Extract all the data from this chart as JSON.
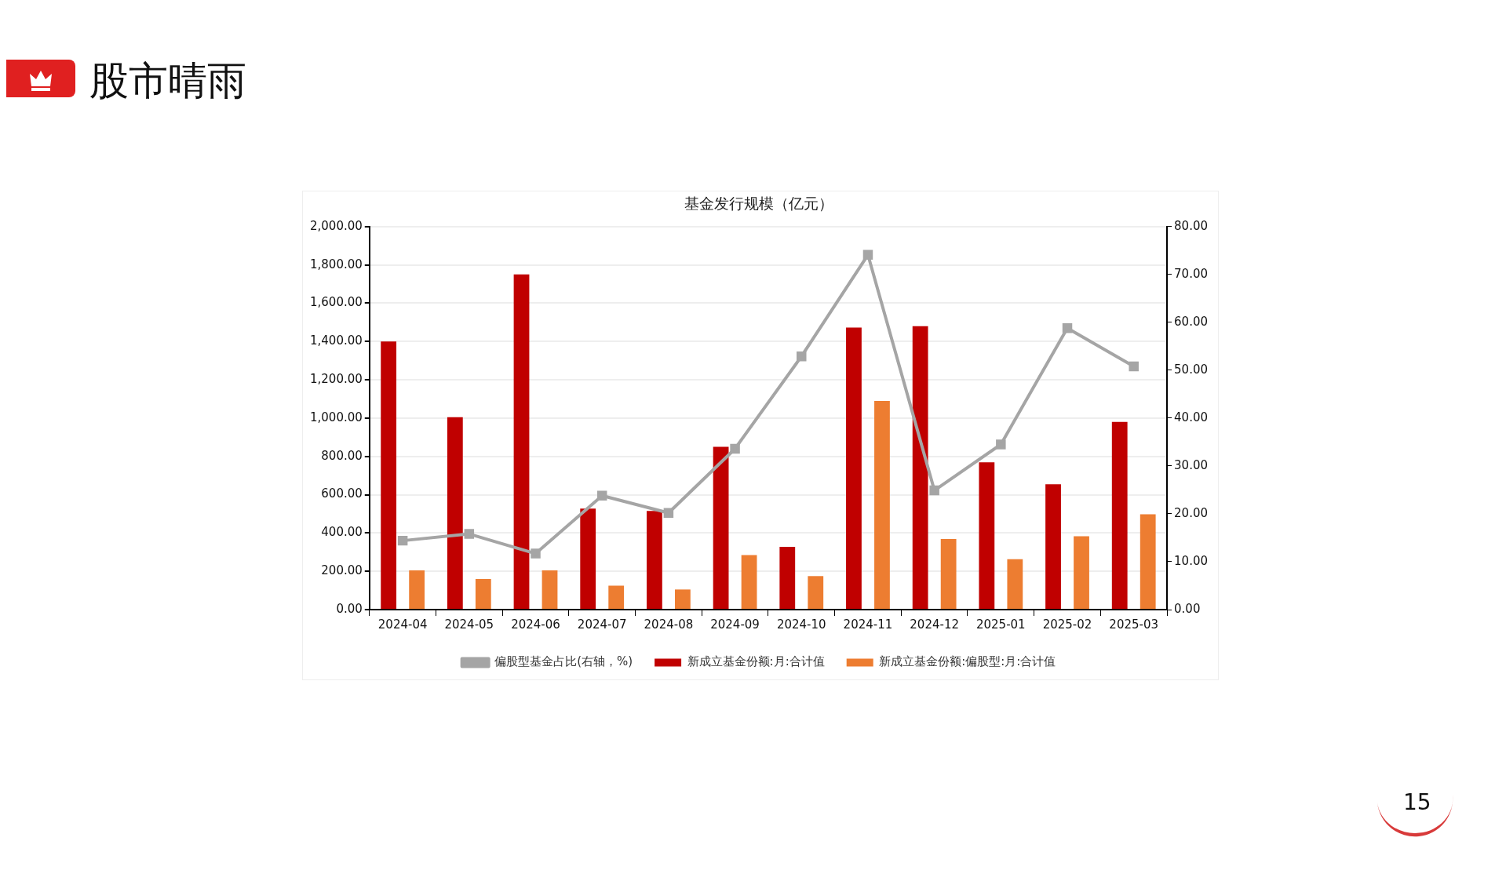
{
  "chart_data": {
    "type": "bar",
    "title": "基金发行规模（亿元）",
    "categories": [
      "2024-04",
      "2024-05",
      "2024-06",
      "2024-07",
      "2024-08",
      "2024-09",
      "2024-10",
      "2024-11",
      "2024-12",
      "2025-01",
      "2025-02",
      "2025-03"
    ],
    "series": [
      {
        "name": "新成立基金份额:月:合计值",
        "color": "#c00000",
        "values": [
          1400,
          1005,
          1750,
          527,
          515,
          850,
          328,
          1473,
          1480,
          769,
          654,
          980
        ]
      },
      {
        "name": "新成立基金份额:偏股型:月:合计值",
        "color": "#ed7d31",
        "values": [
          205,
          160,
          205,
          125,
          105,
          285,
          175,
          1090,
          369,
          263,
          383,
          498
        ]
      },
      {
        "name": "偏股型基金占比(右轴，%)",
        "type": "line",
        "axis": "y2",
        "color": "#a5a5a5",
        "marker": "square",
        "values": [
          14.4,
          15.8,
          11.7,
          23.8,
          20.2,
          33.6,
          52.9,
          74.1,
          24.9,
          34.5,
          58.8,
          50.8
        ]
      }
    ],
    "ylim": [
      0,
      2000
    ],
    "yticks": [
      {
        "value": 0,
        "label": "0.00"
      },
      {
        "value": 200,
        "label": "200.00"
      },
      {
        "value": 400,
        "label": "400.00"
      },
      {
        "value": 600,
        "label": "600.00"
      },
      {
        "value": 800,
        "label": "800.00"
      },
      {
        "value": 1000,
        "label": "1,000.00"
      },
      {
        "value": 1200,
        "label": "1,200.00"
      },
      {
        "value": 1400,
        "label": "1,400.00"
      },
      {
        "value": 1600,
        "label": "1,600.00"
      },
      {
        "value": 1800,
        "label": "1,800.00"
      },
      {
        "value": 2000,
        "label": "2,000.00"
      }
    ],
    "y2lim": [
      0,
      80
    ],
    "y2ticks": [
      {
        "value": 0,
        "label": "0.00"
      },
      {
        "value": 10,
        "label": "10.00"
      },
      {
        "value": 20,
        "label": "20.00"
      },
      {
        "value": 30,
        "label": "30.00"
      },
      {
        "value": 40,
        "label": "40.00"
      },
      {
        "value": 50,
        "label": "50.00"
      },
      {
        "value": 60,
        "label": "60.00"
      },
      {
        "value": 70,
        "label": "70.00"
      },
      {
        "value": 80,
        "label": "80.00"
      }
    ],
    "grid": "y",
    "legend": "bottom",
    "annotations": [
      "股市晴雨",
      "15"
    ]
  }
}
